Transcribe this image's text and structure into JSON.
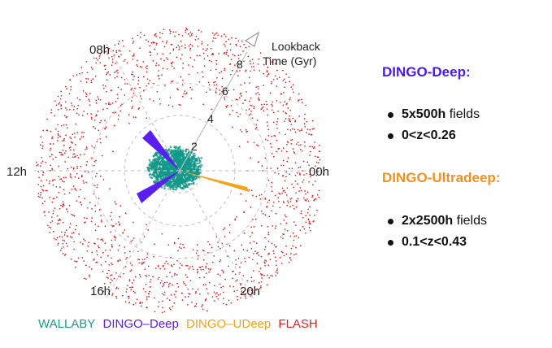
{
  "diagram": {
    "hour_labels": [
      "08h",
      "12h",
      "16h",
      "20h",
      "00h"
    ],
    "age_labels": [
      "2",
      "4",
      "6",
      "8"
    ],
    "axis_title_lines": [
      "Lookback",
      "Time (Gyr)"
    ],
    "legend": [
      {
        "label": "WALLABY",
        "color": "#1a9c86"
      },
      {
        "label": "DINGO–Deep",
        "color": "#5a1df2"
      },
      {
        "label": "DINGO–UDeep",
        "color": "#f7a21b"
      },
      {
        "label": "FLASH",
        "color": "#ee1c1c"
      }
    ],
    "colors": {
      "flash_points": "#e8181e",
      "wallaby_points": "#12998a",
      "dingo_deep": "#5a1df2",
      "dingo_udeep": "#f7a21b",
      "grid": "#c9c9c9"
    }
  },
  "surveys": [
    {
      "title": "DINGO-Deep:",
      "color": "#4a1aee",
      "bullets": [
        {
          "bold": "5x500h",
          "rest": " fields"
        },
        {
          "bold": "0<z<0.26",
          "rest": ""
        }
      ]
    },
    {
      "title": "DINGO-Ultradeep:",
      "color": "#f5901e",
      "bullets": [
        {
          "bold": "2x2500h",
          "rest": " fields"
        },
        {
          "bold": "0.1<z<0.43",
          "rest": ""
        }
      ]
    }
  ]
}
